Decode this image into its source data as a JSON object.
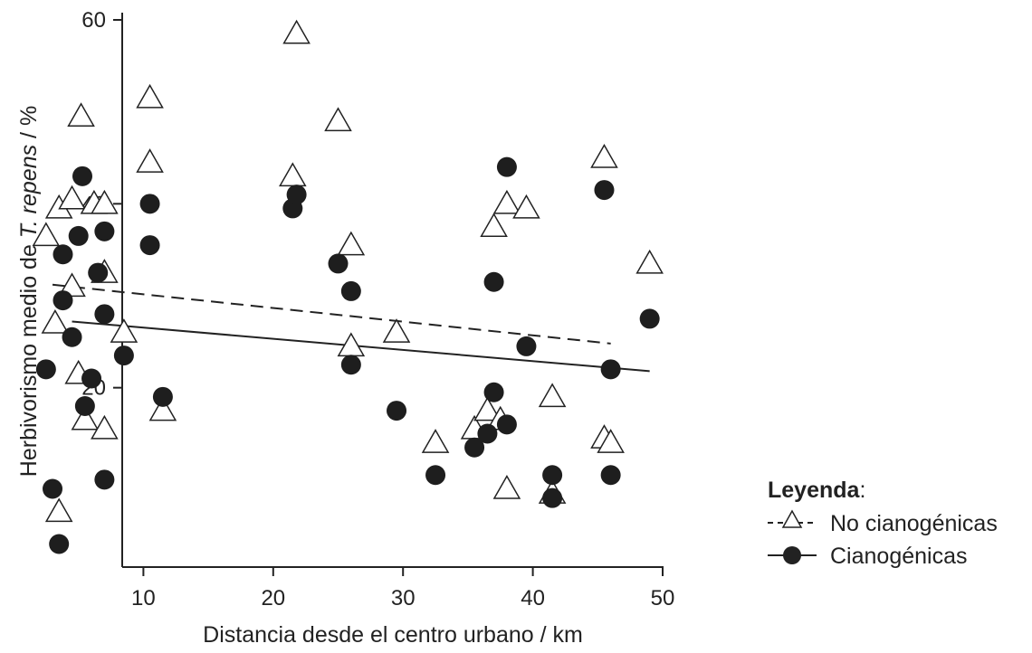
{
  "chart_data": {
    "type": "scatter",
    "xlabel": "Distancia desde el centro urbano / km",
    "ylabel": {
      "prefix": "Herbivorismo medio de ",
      "species": "T. repens",
      "suffix": " / %"
    },
    "xlim": [
      0,
      51
    ],
    "ylim": [
      0,
      60
    ],
    "x_ticks": [
      10,
      20,
      30,
      40,
      50
    ],
    "y_ticks": [
      20,
      40,
      60
    ],
    "grid": false,
    "legend": {
      "title": "Leyenda",
      "title_suffix": ":",
      "placement": "right",
      "entries": [
        {
          "label": "No cianogénicas",
          "marker": "triangle-open",
          "line": "dashed"
        },
        {
          "label": "Cianogénicas",
          "marker": "circle-filled",
          "line": "solid"
        }
      ]
    },
    "series": [
      {
        "name": "No cianogénicas",
        "marker": "triangle-open",
        "trend": {
          "x": [
            3,
            46
          ],
          "y": [
            31.2,
            24.8
          ]
        },
        "points": [
          [
            2.5,
            36.5
          ],
          [
            3.2,
            27
          ],
          [
            3.5,
            39.5
          ],
          [
            3.5,
            6.5
          ],
          [
            4.5,
            31
          ],
          [
            4.5,
            40.5
          ],
          [
            5,
            21.5
          ],
          [
            5.2,
            49.5
          ],
          [
            5.5,
            16.5
          ],
          [
            6.2,
            40
          ],
          [
            7,
            32.5
          ],
          [
            7,
            15.5
          ],
          [
            7,
            40
          ],
          [
            8.5,
            26
          ],
          [
            10.5,
            51.5
          ],
          [
            10.5,
            44.5
          ],
          [
            11.5,
            17.5
          ],
          [
            21.5,
            43
          ],
          [
            21.8,
            58.5
          ],
          [
            25,
            49
          ],
          [
            26,
            35.5
          ],
          [
            26,
            24.5
          ],
          [
            29.5,
            26
          ],
          [
            32.5,
            14
          ],
          [
            35.5,
            15.5
          ],
          [
            36.5,
            17.5
          ],
          [
            37,
            37.5
          ],
          [
            37.5,
            16.5
          ],
          [
            38,
            40
          ],
          [
            38,
            9
          ],
          [
            39.5,
            39.5
          ],
          [
            41.5,
            8.5
          ],
          [
            41.5,
            19
          ],
          [
            45.5,
            45
          ],
          [
            45.5,
            14.5
          ],
          [
            46,
            14
          ],
          [
            49,
            33.5
          ]
        ]
      },
      {
        "name": "Cianogénicas",
        "marker": "circle-filled",
        "trend": {
          "x": [
            4.5,
            49
          ],
          "y": [
            27.2,
            21.8
          ]
        },
        "points": [
          [
            2.5,
            22
          ],
          [
            3,
            9
          ],
          [
            3.5,
            3
          ],
          [
            3.8,
            34.5
          ],
          [
            3.8,
            29.5
          ],
          [
            4.5,
            25.5
          ],
          [
            5,
            36.5
          ],
          [
            5.3,
            43
          ],
          [
            5.5,
            18
          ],
          [
            6,
            21
          ],
          [
            6.5,
            32.5
          ],
          [
            7,
            37
          ],
          [
            7,
            28
          ],
          [
            7,
            10
          ],
          [
            8.5,
            23.5
          ],
          [
            10.5,
            40
          ],
          [
            10.5,
            35.5
          ],
          [
            11.5,
            19
          ],
          [
            21.5,
            39.5
          ],
          [
            21.8,
            41
          ],
          [
            25,
            33.5
          ],
          [
            26,
            30.5
          ],
          [
            26,
            22.5
          ],
          [
            29.5,
            17.5
          ],
          [
            32.5,
            10.5
          ],
          [
            35.5,
            13.5
          ],
          [
            36.5,
            15
          ],
          [
            37,
            31.5
          ],
          [
            37,
            19.5
          ],
          [
            38,
            16
          ],
          [
            38,
            44
          ],
          [
            39.5,
            24.5
          ],
          [
            41.5,
            8
          ],
          [
            41.5,
            10.5
          ],
          [
            45.5,
            41.5
          ],
          [
            46,
            22
          ],
          [
            46,
            10.5
          ],
          [
            49,
            27.5
          ]
        ]
      }
    ]
  }
}
